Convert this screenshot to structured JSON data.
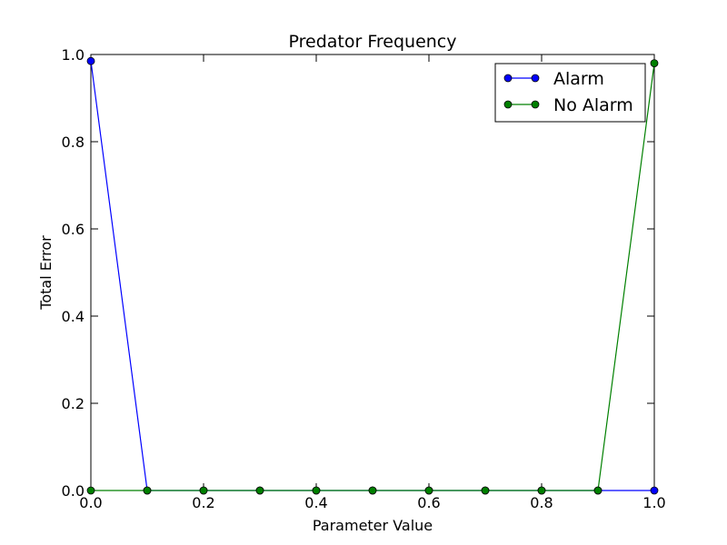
{
  "chart_data": {
    "type": "line",
    "title": "Predator Frequency",
    "xlabel": "Parameter Value",
    "ylabel": "Total Error",
    "xlim": [
      0.0,
      1.0
    ],
    "ylim": [
      0.0,
      1.0
    ],
    "xticks": [
      "0.0",
      "0.2",
      "0.4",
      "0.6",
      "0.8",
      "1.0"
    ],
    "yticks": [
      "0.0",
      "0.2",
      "0.4",
      "0.6",
      "0.8",
      "1.0"
    ],
    "x": [
      0.0,
      0.1,
      0.2,
      0.3,
      0.4,
      0.5,
      0.6,
      0.7,
      0.8,
      0.9,
      1.0
    ],
    "legend_position": "top-right",
    "grid": false,
    "series": [
      {
        "name": "Alarm",
        "color": "#0000ff",
        "values": [
          0.985,
          0.0,
          0.0,
          0.0,
          0.0,
          0.0,
          0.0,
          0.0,
          0.0,
          0.0,
          0.0
        ]
      },
      {
        "name": "No Alarm",
        "color": "#008000",
        "values": [
          0.0,
          0.0,
          0.0,
          0.0,
          0.0,
          0.0,
          0.0,
          0.0,
          0.0,
          0.0,
          0.98
        ]
      }
    ]
  }
}
